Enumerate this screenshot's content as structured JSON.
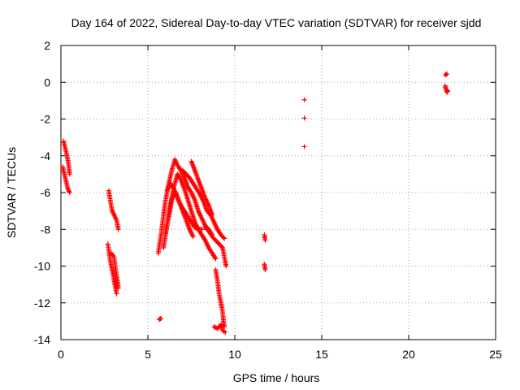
{
  "chart_data": {
    "type": "scatter",
    "title": "Day 164 of 2022, Sidereal Day-to-day VTEC variation (SDTVAR) for receiver sjdd",
    "xlabel": "GPS time / hours",
    "ylabel": "SDTVAR / TECUs",
    "xlim": [
      0,
      25
    ],
    "ylim": [
      -14,
      2
    ],
    "xticks": [
      "0",
      "5",
      "10",
      "15",
      "20",
      "25"
    ],
    "yticks": [
      "2",
      "0",
      "-2",
      "-4",
      "-6",
      "-8",
      "-10",
      "-12",
      "-14"
    ],
    "grid": true,
    "marker": "+",
    "marker_color": "#ff0000",
    "series": [
      {
        "name": "SDTVAR",
        "segments": [
          [
            [
              0.15,
              -3.2
            ],
            [
              0.25,
              -3.6
            ],
            [
              0.35,
              -4.0
            ],
            [
              0.45,
              -4.5
            ],
            [
              0.5,
              -5.0
            ]
          ],
          [
            [
              0.1,
              -4.6
            ],
            [
              0.2,
              -5.0
            ],
            [
              0.3,
              -5.4
            ],
            [
              0.4,
              -5.8
            ],
            [
              0.5,
              -6.0
            ]
          ],
          [
            [
              2.75,
              -5.9
            ],
            [
              2.85,
              -6.5
            ],
            [
              2.95,
              -7.0
            ],
            [
              3.05,
              -7.2
            ],
            [
              3.2,
              -7.5
            ],
            [
              3.3,
              -8.0
            ]
          ],
          [
            [
              2.7,
              -8.8
            ],
            [
              2.8,
              -9.5
            ],
            [
              2.9,
              -10.0
            ],
            [
              3.0,
              -10.5
            ],
            [
              3.1,
              -11.0
            ],
            [
              3.2,
              -11.5
            ]
          ],
          [
            [
              2.9,
              -9.3
            ],
            [
              3.05,
              -9.5
            ],
            [
              3.15,
              -10.2
            ],
            [
              3.25,
              -10.8
            ],
            [
              3.3,
              -11.2
            ]
          ],
          [
            [
              5.65,
              -12.9
            ],
            [
              5.75,
              -12.85
            ]
          ],
          [
            [
              5.6,
              -9.3
            ],
            [
              5.8,
              -8.0
            ],
            [
              6.0,
              -6.5
            ],
            [
              6.2,
              -5.5
            ],
            [
              6.4,
              -4.7
            ],
            [
              6.55,
              -4.2
            ],
            [
              6.7,
              -4.5
            ],
            [
              6.9,
              -4.8
            ],
            [
              7.1,
              -5.2
            ],
            [
              7.3,
              -5.7
            ],
            [
              7.5,
              -6.0
            ],
            [
              7.7,
              -6.4
            ],
            [
              7.9,
              -7.0
            ],
            [
              8.1,
              -7.4
            ],
            [
              8.3,
              -7.8
            ],
            [
              8.5,
              -8.0
            ],
            [
              8.7,
              -8.3
            ]
          ],
          [
            [
              5.9,
              -9.0
            ],
            [
              6.1,
              -7.8
            ],
            [
              6.3,
              -6.6
            ],
            [
              6.5,
              -5.7
            ],
            [
              6.7,
              -5.0
            ],
            [
              6.9,
              -5.3
            ],
            [
              7.1,
              -5.8
            ],
            [
              7.3,
              -6.4
            ],
            [
              7.5,
              -7.0
            ],
            [
              7.7,
              -7.6
            ],
            [
              7.9,
              -8.0
            ],
            [
              8.1,
              -8.3
            ],
            [
              8.3,
              -8.6
            ],
            [
              8.5,
              -9.0
            ],
            [
              8.7,
              -9.3
            ],
            [
              8.9,
              -9.6
            ]
          ],
          [
            [
              6.0,
              -8.3
            ],
            [
              6.2,
              -7.3
            ],
            [
              6.4,
              -6.3
            ],
            [
              6.6,
              -6.0
            ],
            [
              6.8,
              -6.5
            ],
            [
              7.0,
              -7.0
            ],
            [
              7.2,
              -7.5
            ],
            [
              7.4,
              -8.0
            ],
            [
              7.6,
              -8.4
            ]
          ],
          [
            [
              6.1,
              -5.9
            ],
            [
              6.3,
              -5.5
            ],
            [
              6.5,
              -5.8
            ],
            [
              6.7,
              -6.3
            ],
            [
              6.9,
              -6.7
            ],
            [
              7.1,
              -7.0
            ],
            [
              7.3,
              -7.3
            ],
            [
              7.5,
              -7.6
            ],
            [
              7.7,
              -7.9
            ],
            [
              7.9,
              -8.0
            ],
            [
              8.1,
              -8.0
            ]
          ],
          [
            [
              7.0,
              -4.8
            ],
            [
              7.2,
              -5.0
            ],
            [
              7.4,
              -5.2
            ],
            [
              7.6,
              -5.5
            ],
            [
              7.8,
              -5.8
            ],
            [
              8.0,
              -6.1
            ],
            [
              8.2,
              -6.5
            ],
            [
              8.4,
              -7.0
            ],
            [
              8.6,
              -7.2
            ],
            [
              8.8,
              -7.6
            ],
            [
              9.0,
              -8.0
            ],
            [
              9.2,
              -8.3
            ],
            [
              9.4,
              -8.5
            ]
          ],
          [
            [
              7.5,
              -4.3
            ],
            [
              7.7,
              -4.8
            ],
            [
              7.9,
              -5.3
            ],
            [
              8.1,
              -5.8
            ],
            [
              8.3,
              -6.3
            ],
            [
              8.5,
              -6.7
            ],
            [
              8.7,
              -7.2
            ]
          ],
          [
            [
              8.3,
              -7.9
            ],
            [
              8.5,
              -8.1
            ],
            [
              8.7,
              -8.4
            ],
            [
              8.9,
              -8.6
            ],
            [
              9.1,
              -8.8
            ],
            [
              9.3,
              -9.0
            ],
            [
              9.4,
              -9.5
            ],
            [
              9.5,
              -10.0
            ]
          ],
          [
            [
              8.9,
              -10.2
            ],
            [
              9.0,
              -10.8
            ],
            [
              9.1,
              -11.5
            ],
            [
              9.2,
              -12.0
            ],
            [
              9.3,
              -12.5
            ],
            [
              9.35,
              -13.0
            ],
            [
              9.4,
              -13.3
            ]
          ],
          [
            [
              8.8,
              -13.3
            ],
            [
              9.0,
              -13.4
            ],
            [
              9.2,
              -13.2
            ],
            [
              9.3,
              -13.5
            ],
            [
              9.45,
              -13.6
            ]
          ],
          [
            [
              11.7,
              -8.3
            ],
            [
              11.75,
              -8.6
            ]
          ],
          [
            [
              11.7,
              -9.9
            ],
            [
              11.75,
              -10.2
            ]
          ],
          [
            [
              14.0,
              -0.95
            ]
          ],
          [
            [
              14.0,
              -1.95
            ]
          ],
          [
            [
              14.0,
              -3.5
            ]
          ],
          [
            [
              22.1,
              0.4
            ],
            [
              22.2,
              0.45
            ]
          ],
          [
            [
              22.1,
              -0.2
            ],
            [
              22.15,
              -0.4
            ],
            [
              22.2,
              -0.55
            ],
            [
              22.25,
              -0.45
            ]
          ]
        ]
      }
    ]
  }
}
